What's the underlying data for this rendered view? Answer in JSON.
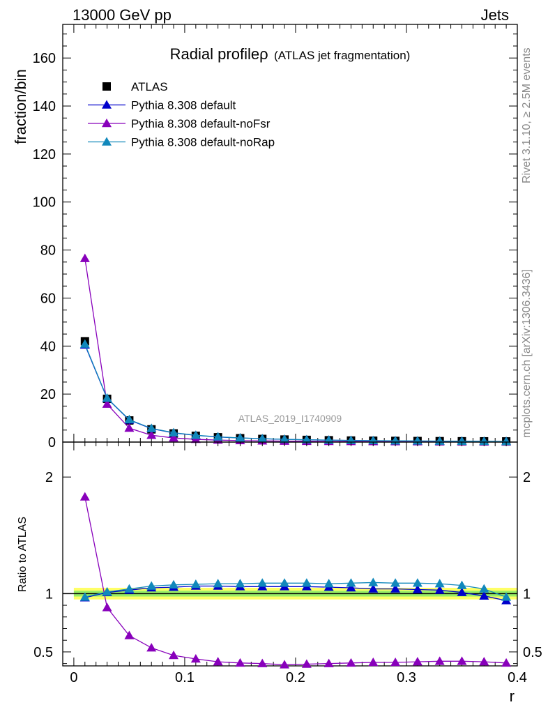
{
  "header": {
    "left": "13000 GeV pp",
    "right": "Jets"
  },
  "side_labels": {
    "rivet": "Rivet 3.1.10, ≥ 2.5M events",
    "mcplots": "mcplots.cern.ch [arXiv:1306.3436]"
  },
  "chart_data": [
    {
      "type": "scatter",
      "panel": "main",
      "title_main": "Radial profileρ",
      "title_sub": "(ATLAS jet fragmentation)",
      "watermark": "ATLAS_2019_I1740909",
      "xlabel": "r",
      "ylabel": "fraction/bin",
      "xlim": [
        -0.01,
        0.4
      ],
      "ylim": [
        0,
        174
      ],
      "yticks": [
        0,
        20,
        40,
        60,
        80,
        100,
        120,
        140,
        160
      ],
      "xticks": [
        0,
        0.1,
        0.2,
        0.3,
        0.4
      ],
      "x": [
        0.01,
        0.03,
        0.05,
        0.07,
        0.09,
        0.11,
        0.13,
        0.15,
        0.17,
        0.19,
        0.21,
        0.23,
        0.25,
        0.27,
        0.29,
        0.31,
        0.33,
        0.35,
        0.37,
        0.39
      ],
      "legend": "top-left",
      "series": [
        {
          "name": "ATLAS",
          "marker": "square",
          "color": "#000000",
          "line": false,
          "values": [
            42.0,
            18.0,
            9.0,
            5.3,
            3.6,
            2.6,
            2.0,
            1.6,
            1.3,
            1.05,
            0.9,
            0.75,
            0.63,
            0.55,
            0.48,
            0.42,
            0.37,
            0.33,
            0.3,
            0.27
          ]
        },
        {
          "name": "Pythia 8.308 default",
          "marker": "triangle",
          "color": "#0000cc",
          "line": true,
          "values": [
            40.5,
            18.2,
            9.2,
            5.6,
            3.8,
            2.8,
            2.1,
            1.7,
            1.38,
            1.12,
            0.95,
            0.79,
            0.66,
            0.57,
            0.5,
            0.43,
            0.38,
            0.33,
            0.29,
            0.25
          ]
        },
        {
          "name": "Pythia 8.308 default-noFsr",
          "marker": "triangle",
          "color": "#8800bb",
          "line": true,
          "values": [
            76.5,
            15.8,
            5.8,
            2.85,
            1.7,
            1.15,
            0.82,
            0.62,
            0.5,
            0.4,
            0.34,
            0.29,
            0.25,
            0.22,
            0.19,
            0.17,
            0.15,
            0.13,
            0.12,
            0.1
          ]
        },
        {
          "name": "Pythia 8.308 default-noRap",
          "marker": "triangle",
          "color": "#1188bb",
          "line": true,
          "values": [
            40.8,
            18.3,
            9.35,
            5.7,
            3.9,
            2.85,
            2.17,
            1.73,
            1.42,
            1.15,
            0.98,
            0.81,
            0.69,
            0.6,
            0.52,
            0.46,
            0.4,
            0.35,
            0.31,
            0.26
          ]
        }
      ]
    },
    {
      "type": "line",
      "panel": "ratio",
      "ylabel": "Ratio to ATLAS",
      "xlabel": "r",
      "xlim": [
        -0.01,
        0.4
      ],
      "ylim": [
        0.38,
        2.3
      ],
      "yticks": [
        0.5,
        1,
        2
      ],
      "xticks": [
        0,
        0.1,
        0.2,
        0.3,
        0.4
      ],
      "x": [
        0.01,
        0.03,
        0.05,
        0.07,
        0.09,
        0.11,
        0.13,
        0.15,
        0.17,
        0.19,
        0.21,
        0.23,
        0.25,
        0.27,
        0.29,
        0.31,
        0.33,
        0.35,
        0.37,
        0.39
      ],
      "uncertainty_band": {
        "color_outer": "#ffff66",
        "color_inner": "#99ee66",
        "half_width": 0.05,
        "half_width_inner": 0.025
      },
      "series": [
        {
          "name": "Pythia 8.308 default",
          "color": "#0000cc",
          "values": [
            0.965,
            1.01,
            1.03,
            1.05,
            1.055,
            1.065,
            1.065,
            1.06,
            1.06,
            1.06,
            1.06,
            1.055,
            1.05,
            1.04,
            1.04,
            1.035,
            1.03,
            1.01,
            0.98,
            0.94
          ]
        },
        {
          "name": "Pythia 8.308 default-noFsr",
          "color": "#8800bb",
          "values": [
            1.83,
            0.88,
            0.64,
            0.535,
            0.47,
            0.44,
            0.415,
            0.405,
            0.4,
            0.39,
            0.395,
            0.4,
            0.405,
            0.41,
            0.41,
            0.415,
            0.42,
            0.42,
            0.415,
            0.405
          ]
        },
        {
          "name": "Pythia 8.308 default-noRap",
          "color": "#1188bb",
          "values": [
            0.97,
            1.015,
            1.04,
            1.065,
            1.075,
            1.08,
            1.085,
            1.085,
            1.09,
            1.09,
            1.09,
            1.085,
            1.09,
            1.095,
            1.09,
            1.09,
            1.085,
            1.07,
            1.04,
            0.97
          ]
        }
      ]
    }
  ]
}
